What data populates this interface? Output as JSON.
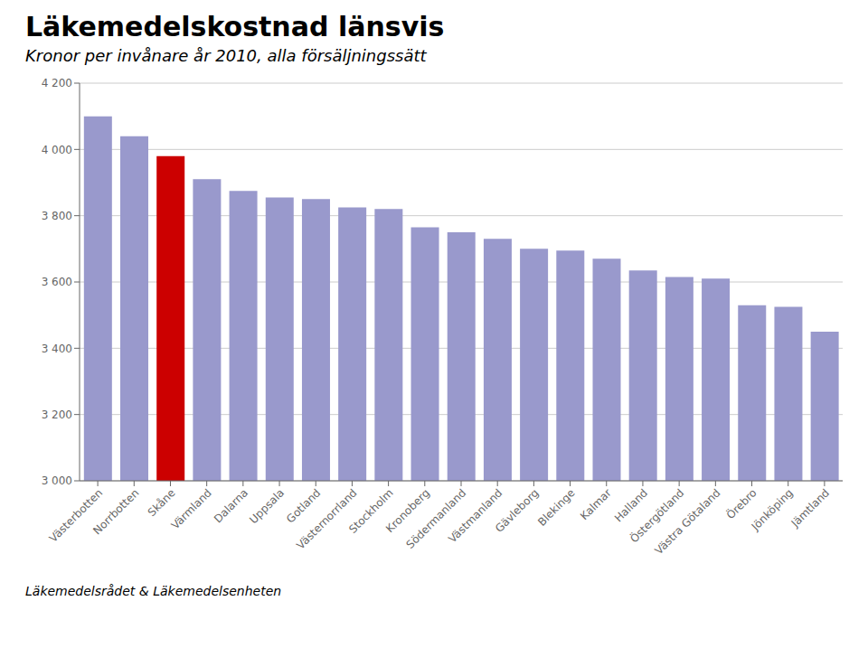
{
  "chart_data": {
    "type": "bar",
    "title": "Läkemedelskostnad länsvis",
    "subtitle": "Kronor per invånare år 2010, alla försäljningssätt",
    "footer": "Läkemedelsrådet & Läkemedelsenheten",
    "categories": [
      "Västerbotten",
      "Norrbotten",
      "Skåne",
      "Värmland",
      "Dalarna",
      "Uppsala",
      "Gotland",
      "Västernorrland",
      "Stockholm",
      "Kronoberg",
      "Södermanland",
      "Västmanland",
      "Gävleborg",
      "Blekinge",
      "Kalmar",
      "Halland",
      "Östergötland",
      "Västra Götaland",
      "Örebro",
      "Jönköping",
      "Jämtland"
    ],
    "values": [
      4100,
      4040,
      3980,
      3910,
      3875,
      3855,
      3850,
      3825,
      3820,
      3765,
      3750,
      3730,
      3700,
      3695,
      3670,
      3635,
      3615,
      3610,
      3530,
      3525,
      3450
    ],
    "colors": [
      "#9999cc",
      "#9999cc",
      "#cc0000",
      "#9999cc",
      "#9999cc",
      "#9999cc",
      "#9999cc",
      "#9999cc",
      "#9999cc",
      "#9999cc",
      "#9999cc",
      "#9999cc",
      "#9999cc",
      "#9999cc",
      "#9999cc",
      "#9999cc",
      "#9999cc",
      "#9999cc",
      "#9999cc",
      "#9999cc",
      "#9999cc"
    ],
    "ylim": [
      3000,
      4200
    ],
    "yticks": [
      {
        "value": 3000,
        "label": "3 000"
      },
      {
        "value": 3200,
        "label": "3 200"
      },
      {
        "value": 3400,
        "label": "3 400"
      },
      {
        "value": 3600,
        "label": "3 600"
      },
      {
        "value": 3800,
        "label": "3 800"
      },
      {
        "value": 4000,
        "label": "4 000"
      },
      {
        "value": 4200,
        "label": "4 200"
      }
    ],
    "grid": true
  }
}
